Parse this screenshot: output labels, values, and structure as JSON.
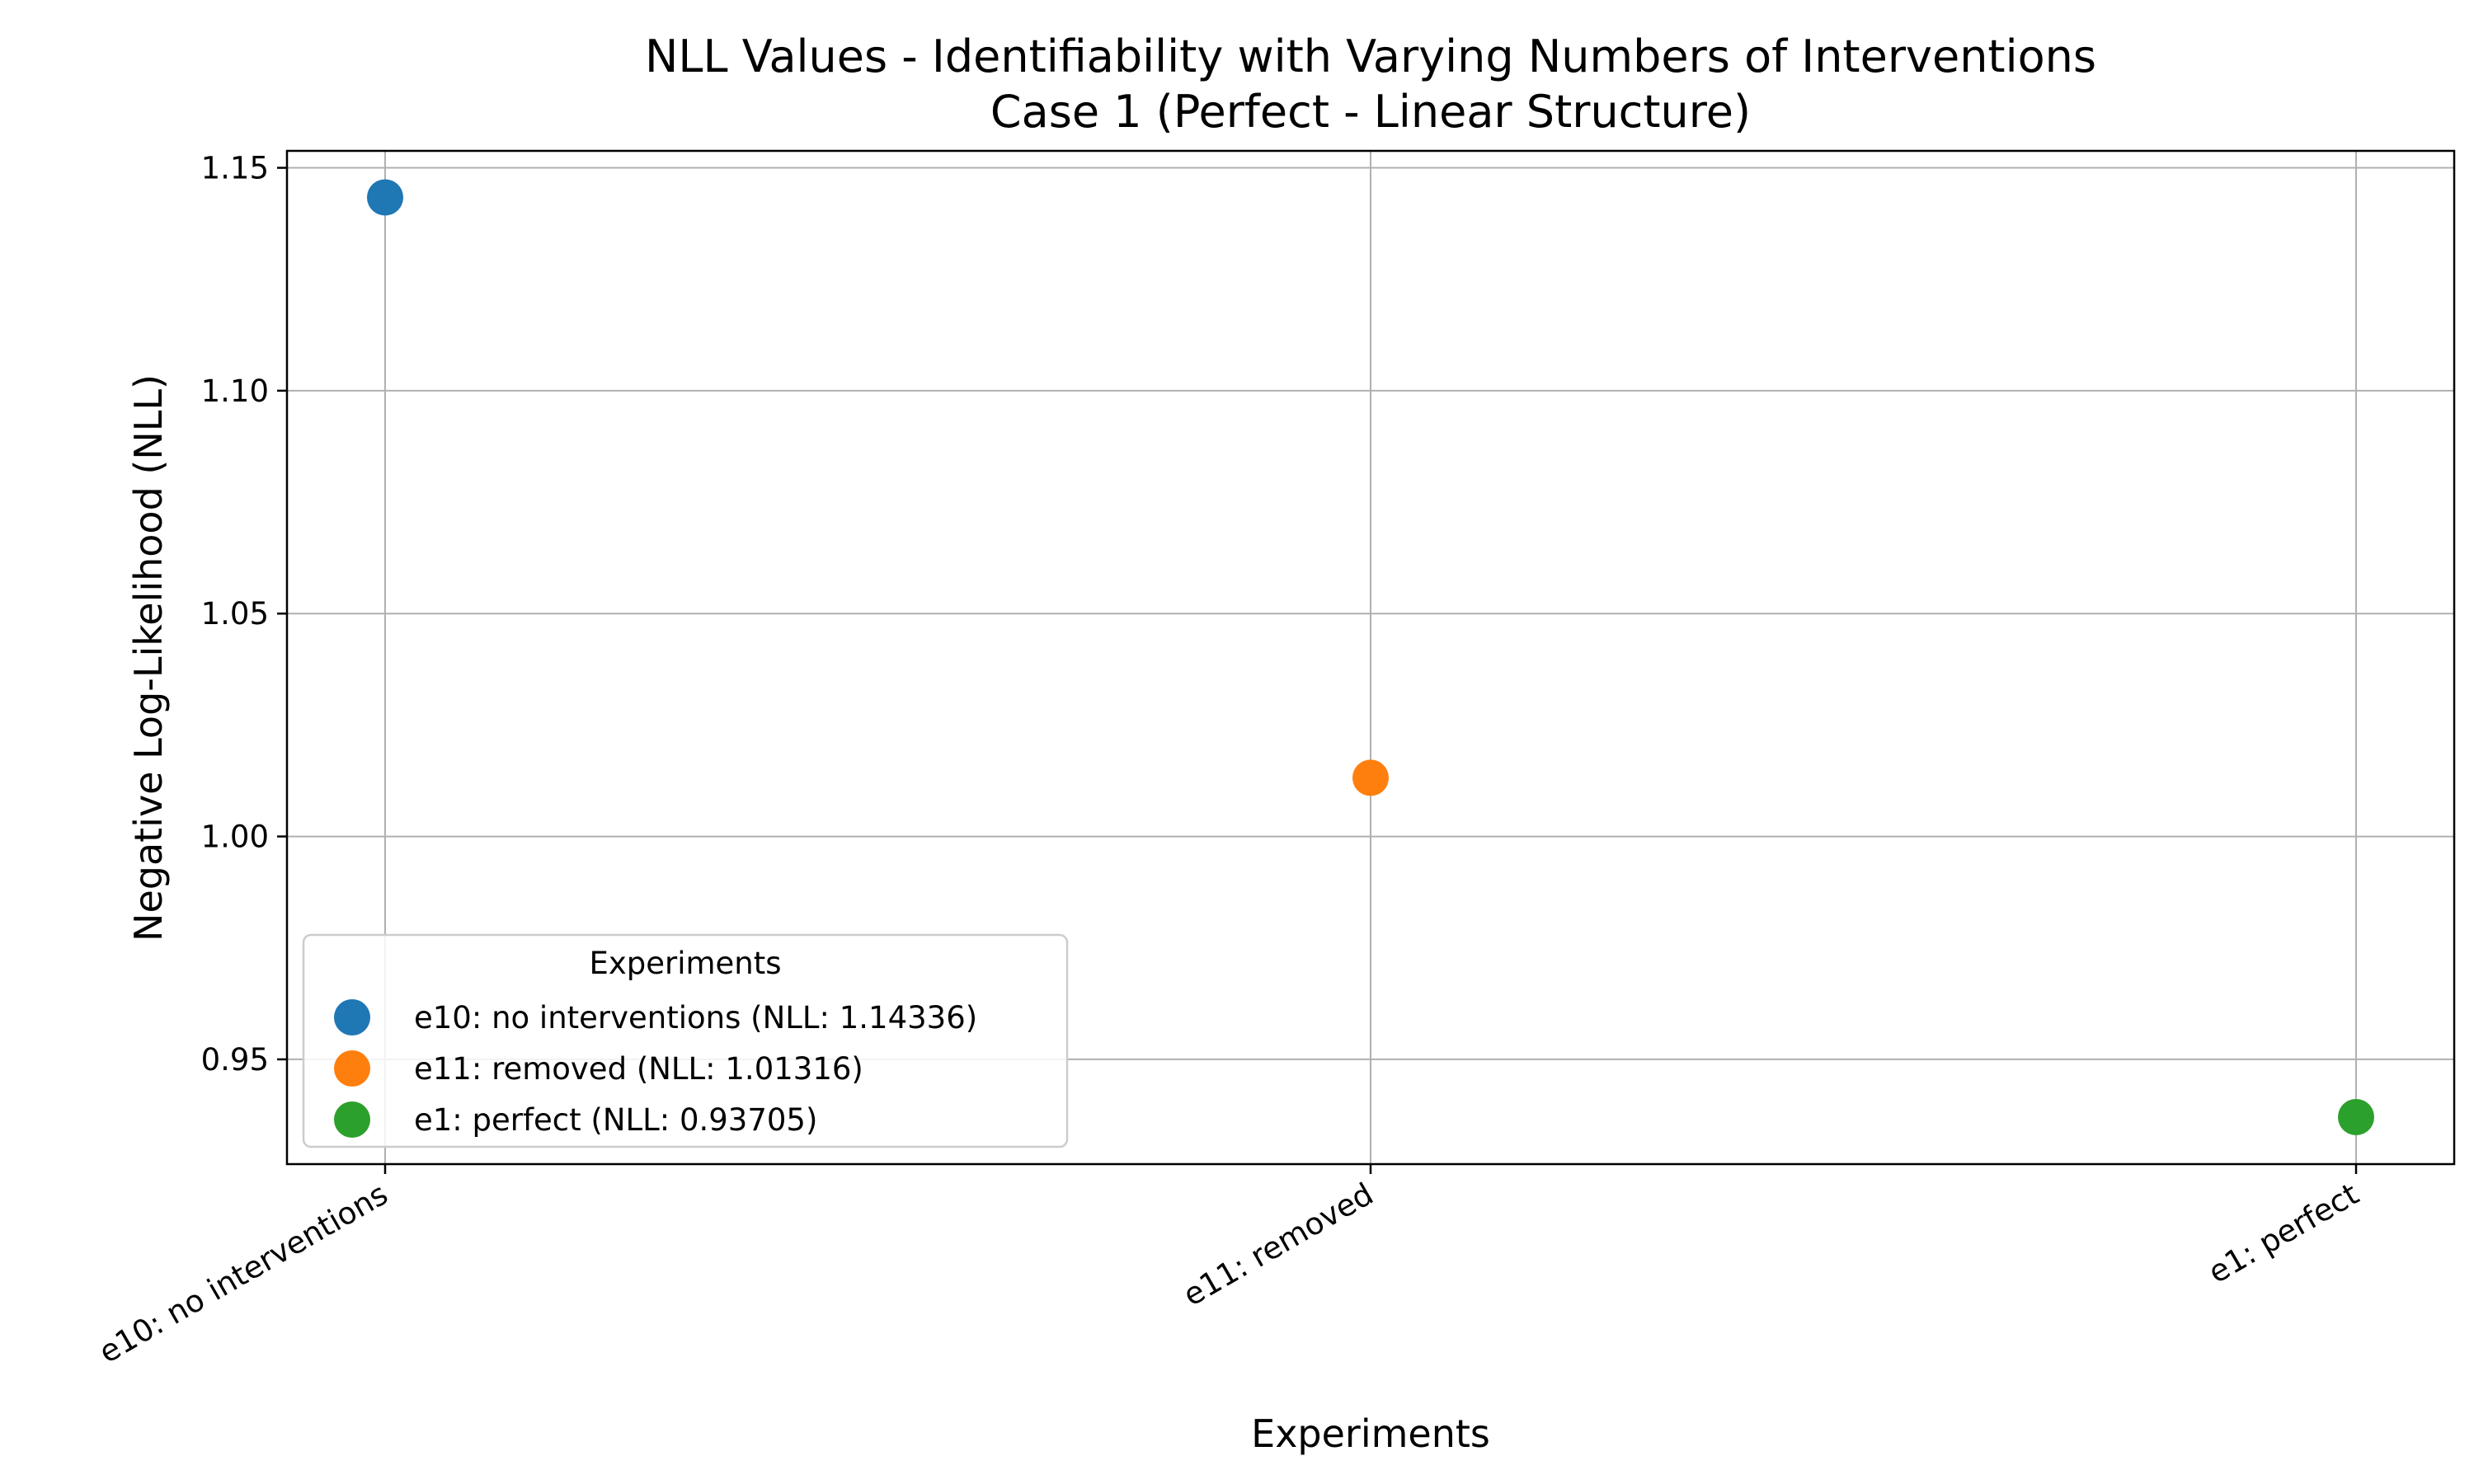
{
  "chart_data": {
    "type": "scatter",
    "title": "NLL Values - Identifiability with Varying Numbers of Interventions",
    "subtitle": "Case 1 (Perfect - Linear Structure)",
    "xlabel": "Experiments",
    "ylabel": "Negative Log-Likelihood (NLL)",
    "categories": [
      "e10: no interventions",
      "e11: removed",
      "e1: perfect"
    ],
    "series": [
      {
        "name": "e10: no interventions (NLL: 1.14336)",
        "category": "e10: no interventions",
        "value": 1.14336,
        "color": "#1f77b4"
      },
      {
        "name": "e11: removed (NLL: 1.01316)",
        "category": "e11: removed",
        "value": 1.01316,
        "color": "#ff7f0e"
      },
      {
        "name": "e1: perfect (NLL: 0.93705)",
        "category": "e1: perfect",
        "value": 0.93705,
        "color": "#2ca02c"
      }
    ],
    "ylim": [
      0.9265,
      1.1538
    ],
    "yticks": [
      "0.95",
      "1.00",
      "1.05",
      "1.10",
      "1.15"
    ],
    "grid": true,
    "legend": {
      "title": "Experiments",
      "placement": "lower-left"
    }
  }
}
